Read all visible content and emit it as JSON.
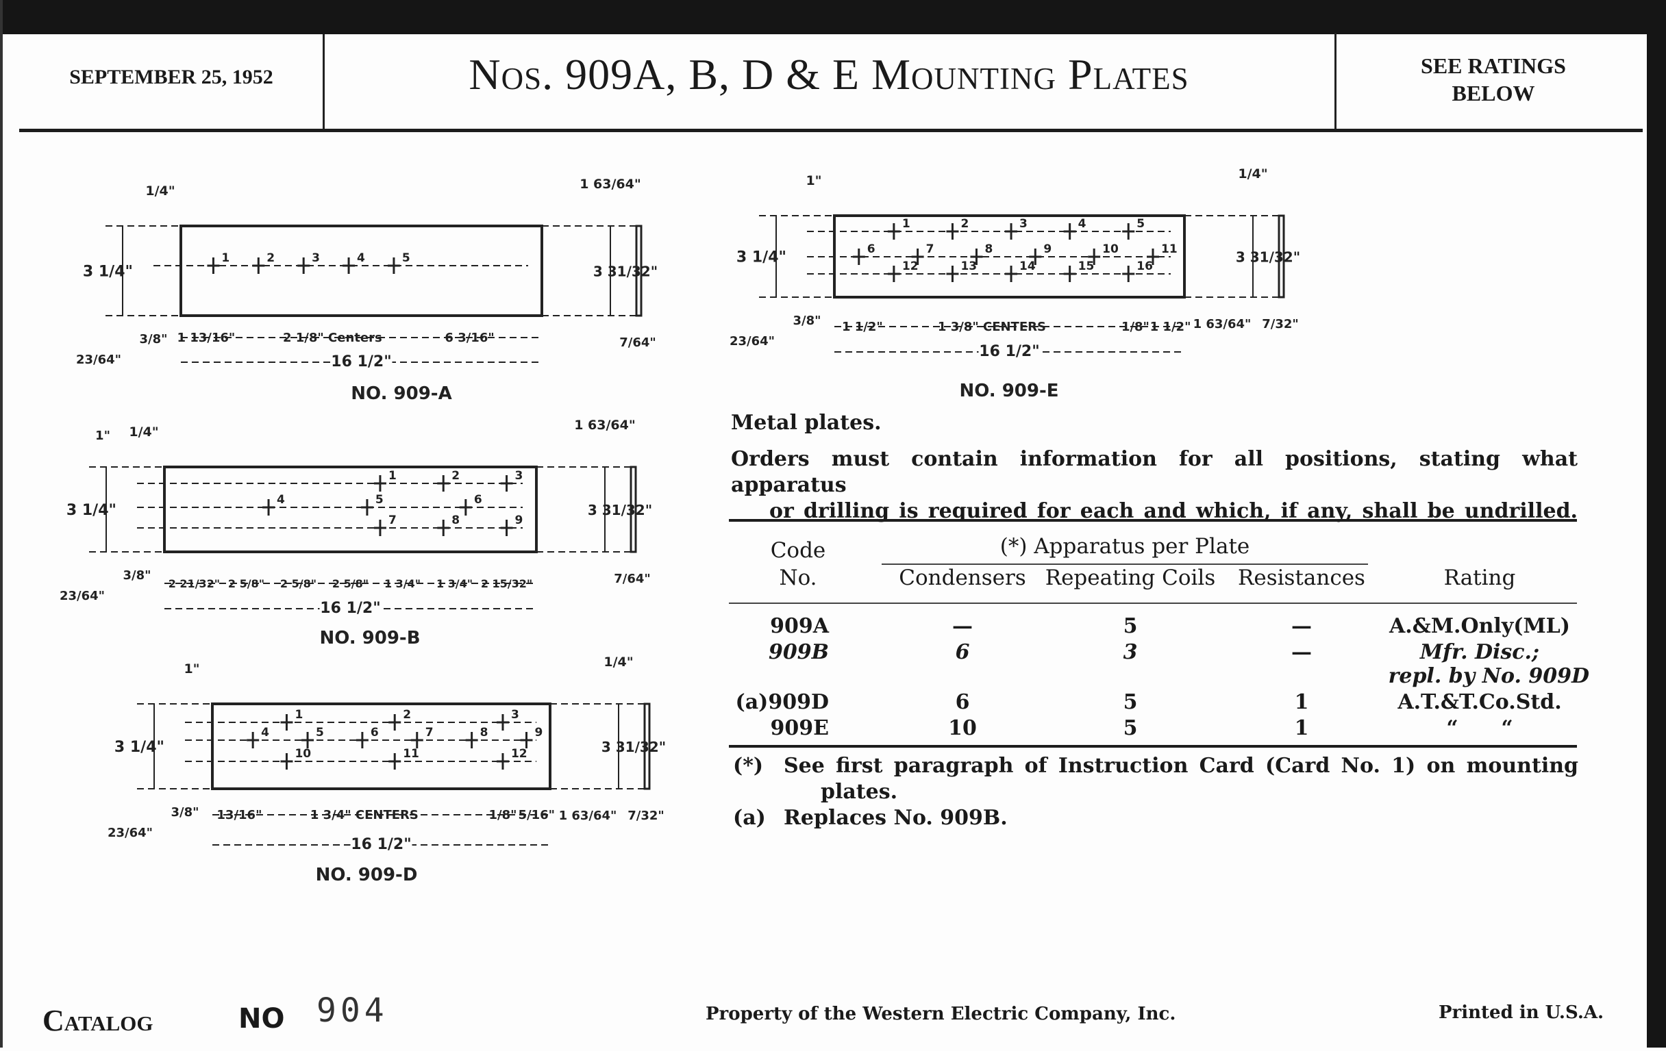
{
  "header": {
    "date": "SEPTEMBER 25, 1952",
    "title": "Nos. 909A, B, D & E Mounting Plates",
    "ratings_note_line1": "SEE RATINGS",
    "ratings_note_line2": "BELOW"
  },
  "drawings": [
    {
      "caption": "NO. 909-A",
      "hole_rows": [
        [
          "1",
          "2",
          "3",
          "4",
          "5"
        ]
      ],
      "dims": {
        "height": "3 1/4\"",
        "top_left": "1/4\"",
        "right_height": "3 31/32\"",
        "right_top": "1 63/64\"",
        "thickness": "7/64\"",
        "left_bottom": "23/64\"",
        "left_offset": "3/8\"",
        "bottom": [
          "1 13/16\"",
          "2 1/8\" Centers",
          "6 3/16\""
        ],
        "overall": "16 1/2\""
      }
    },
    {
      "caption": "NO. 909-B",
      "hole_rows": [
        [
          "1",
          "2",
          "3"
        ],
        [
          "4",
          "5",
          "6"
        ],
        [
          "7",
          "8",
          "9"
        ]
      ],
      "dims": {
        "height": "3 1/4\"",
        "top_left": "1/4\"",
        "right_height": "3 31/32\"",
        "right_top": "1 63/64\"",
        "thickness": "7/64\"",
        "left_bottom": "23/64\"",
        "left_offset": "3/8\"",
        "extra": "1\"",
        "bottom": [
          "2 21/32\"",
          "2 5/8\"",
          "2 5/8\"",
          "2 5/8\"",
          "1 3/4\"",
          "1 3/4\"",
          "2 15/32\""
        ],
        "overall": "16 1/2\""
      }
    },
    {
      "caption": "NO. 909-D",
      "hole_rows": [
        [
          "1",
          "2",
          "3"
        ],
        [
          "4",
          "5",
          "6",
          "7",
          "8",
          "9"
        ],
        [
          "10",
          "11",
          "12"
        ]
      ],
      "dims": {
        "height": "3 1/4\"",
        "top_left": "1\"",
        "right_height": "3 31/32\"",
        "right_top": "1/4\"",
        "thickness": "7/32\"",
        "left_bottom": "23/64\"",
        "left_offset": "3/8\"",
        "extra": "1 63/64\"",
        "bottom": [
          "13/16\"",
          "1 3/4\" CENTERS",
          "1/8\"",
          "5/16\""
        ],
        "overall": "16 1/2\""
      }
    },
    {
      "caption": "NO. 909-E",
      "hole_rows": [
        [
          "1",
          "2",
          "3",
          "4",
          "5"
        ],
        [
          "6",
          "7",
          "8",
          "9",
          "10",
          "11"
        ],
        [
          "12",
          "13",
          "14",
          "15",
          "16"
        ]
      ],
      "dims": {
        "height": "3 1/4\"",
        "top_left": "1\"",
        "right_height": "3 31/32\"",
        "right_top": "1/4\"",
        "thickness": "7/32\"",
        "left_bottom": "23/64\"",
        "left_offset": "3/8\"",
        "extra": "1 63/64\"",
        "bottom": [
          "1 1/2\"",
          "1 3/8\" CENTERS",
          "1/8\"",
          "1 1/2\""
        ],
        "overall": "16 1/2\""
      }
    }
  ],
  "text": {
    "metal": "Metal plates.",
    "orders_line1": "Orders must contain information for all positions, stating what apparatus",
    "orders_line2": "or drilling is required for each and which, if any, shall be undrilled."
  },
  "table": {
    "headers": {
      "code_line1": "Code",
      "code_line2": "No.",
      "group": "(*) Apparatus per Plate",
      "condensers": "Condensers",
      "repeating_coils": "Repeating Coils",
      "resistances": "Resistances",
      "rating": "Rating"
    },
    "rows": [
      {
        "code": "909A",
        "condensers": "—",
        "repeating_coils": "5",
        "resistances": "—",
        "rating": "A.&M.Only(ML)",
        "italic": false
      },
      {
        "code": "909B",
        "condensers": "6",
        "repeating_coils": "3",
        "resistances": "—",
        "rating": "Mfr. Disc.;",
        "rating_line2": "repl. by No. 909D",
        "italic": true
      },
      {
        "code": "(a)909D",
        "condensers": "6",
        "repeating_coils": "5",
        "resistances": "1",
        "rating": "A.T.&T.Co.Std.",
        "italic": false
      },
      {
        "code": "909E",
        "condensers": "10",
        "repeating_coils": "5",
        "resistances": "1",
        "rating": "“      “",
        "italic": false
      }
    ]
  },
  "notes": {
    "star_mark": "(*)",
    "star_line1": "See first paragraph of Instruction Card (Card No. 1) on mounting",
    "star_line2": "plates.",
    "a_mark": "(a)",
    "a_text": "Replaces No. 909B."
  },
  "footer": {
    "catalog": "Catalog",
    "no_label": "NO",
    "catalog_number": "904",
    "property": "Property of the Western Electric Company, Inc.",
    "printed": "Printed in U.S.A."
  }
}
